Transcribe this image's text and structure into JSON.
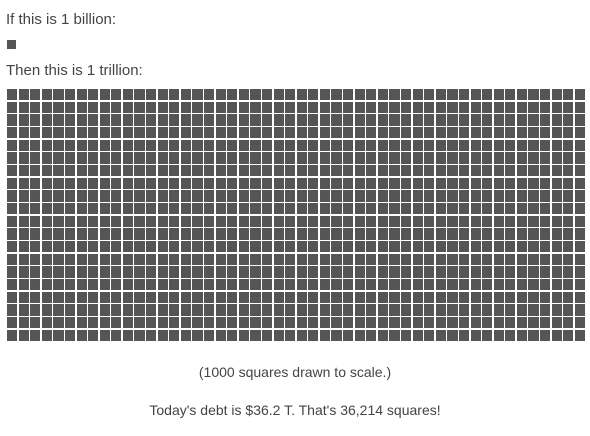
{
  "labels": {
    "billion": "If this is 1 billion:",
    "trillion": "Then this is 1 trillion:"
  },
  "grid": {
    "total_squares": 1000,
    "columns": 50,
    "rows": 20,
    "square_color": "#555555",
    "gap_color": "#ffffff"
  },
  "captions": {
    "scale_note": "(1000 squares drawn to scale.)",
    "debt_statement": "Today's debt is $36.2 T. That's 36,214 squares!"
  }
}
